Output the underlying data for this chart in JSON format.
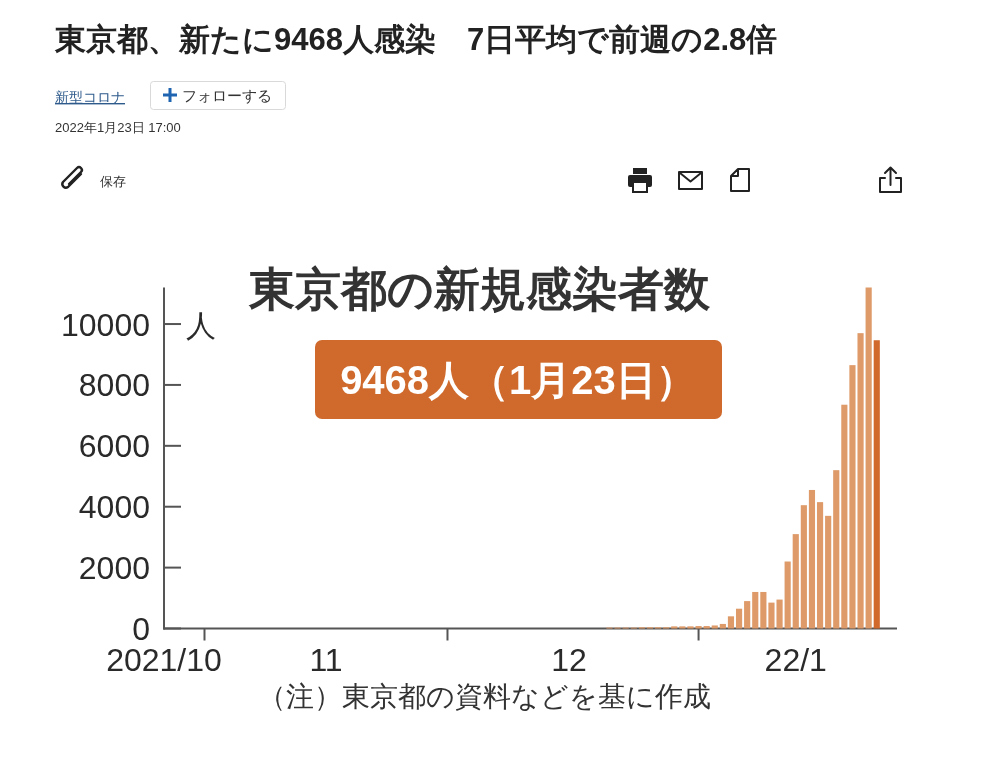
{
  "chart_data": {
    "type": "bar",
    "title": "東京都の新規感染者数",
    "ylabel": "人",
    "annotations": [
      "東京都、新たに9468人感染　7日平均で前週の2.8倍",
      "新型コロナ",
      "フォローする",
      "2022年1月23日 17:00",
      "保存",
      "9468人（1月23日）",
      "（注）東京都の資料などを基に作成"
    ],
    "x": [
      "2021-12-21",
      "2021-12-22",
      "2021-12-23",
      "2021-12-24",
      "2021-12-25",
      "2021-12-26",
      "2021-12-27",
      "2021-12-28",
      "2021-12-29",
      "2021-12-30",
      "2021-12-31",
      "2022-01-01",
      "2022-01-02",
      "2022-01-03",
      "2022-01-04",
      "2022-01-05",
      "2022-01-06",
      "2022-01-07",
      "2022-01-08",
      "2022-01-09",
      "2022-01-10",
      "2022-01-11",
      "2022-01-12",
      "2022-01-13",
      "2022-01-14",
      "2022-01-15",
      "2022-01-16",
      "2022-01-17",
      "2022-01-18",
      "2022-01-19",
      "2022-01-20",
      "2022-01-21",
      "2022-01-22",
      "2022-01-23"
    ],
    "values": [
      30,
      30,
      30,
      30,
      40,
      40,
      40,
      40,
      70,
      70,
      70,
      80,
      80,
      100,
      150,
      400,
      650,
      900,
      1200,
      1200,
      850,
      950,
      2200,
      3100,
      4050,
      4550,
      4150,
      3700,
      5200,
      7350,
      8650,
      9700,
      11200,
      9468
    ],
    "colors": [
      "#de9a68",
      "#de9a68",
      "#de9a68",
      "#de9a68",
      "#de9a68",
      "#de9a68",
      "#de9a68",
      "#de9a68",
      "#de9a68",
      "#de9a68",
      "#de9a68",
      "#de9a68",
      "#de9a68",
      "#de9a68",
      "#de9a68",
      "#de9a68",
      "#de9a68",
      "#de9a68",
      "#de9a68",
      "#de9a68",
      "#de9a68",
      "#de9a68",
      "#de9a68",
      "#de9a68",
      "#de9a68",
      "#de9a68",
      "#de9a68",
      "#de9a68",
      "#de9a68",
      "#de9a68",
      "#de9a68",
      "#de9a68",
      "#de9a68",
      "#d2692c"
    ],
    "xlim": [
      "2021-10-27",
      "2022-01-25T12:00"
    ],
    "xticks": [
      {
        "value": "2021-10-27",
        "label": "2021/10"
      },
      {
        "value": "2021-11-01",
        "label": null
      },
      {
        "value": "2021-11-16",
        "label": "11"
      },
      {
        "value": "2021-12-01",
        "label": null
      },
      {
        "value": "2021-12-16",
        "label": "12"
      },
      {
        "value": "2022-01-01",
        "label": null
      },
      {
        "value": "2022-01-13",
        "label": "22/1"
      }
    ],
    "ylim": [
      0,
      11200
    ],
    "yticks": [
      0,
      2000,
      4000,
      6000,
      8000,
      10000
    ]
  }
}
